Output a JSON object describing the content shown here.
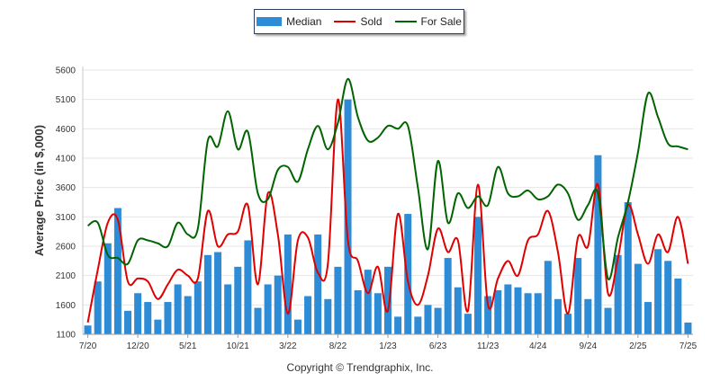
{
  "legend": {
    "median": "Median",
    "sold": "Sold",
    "for_sale": "For Sale"
  },
  "footer": "Copyright © Trendgraphix, Inc.",
  "colors": {
    "median": "#2e8bd6",
    "sold": "#e00000",
    "for_sale": "#006400",
    "grid": "#e6e6e6"
  },
  "chart_data": {
    "type": "bar",
    "title": "",
    "xlabel": "",
    "ylabel": "Average Price (in $,000)",
    "ylim": [
      1100,
      5600
    ],
    "yticks": [
      1100,
      1600,
      2100,
      2600,
      3100,
      3600,
      4100,
      4600,
      5100,
      5600
    ],
    "grid": true,
    "legend_position": "top-center",
    "x_tick_labels": [
      {
        "index": 0,
        "label": "7/20"
      },
      {
        "index": 5,
        "label": "12/20"
      },
      {
        "index": 10,
        "label": "5/21"
      },
      {
        "index": 15,
        "label": "10/21"
      },
      {
        "index": 20,
        "label": "3/22"
      },
      {
        "index": 25,
        "label": "8/22"
      },
      {
        "index": 30,
        "label": "1/23"
      },
      {
        "index": 35,
        "label": "6/23"
      },
      {
        "index": 40,
        "label": "11/23"
      },
      {
        "index": 45,
        "label": "4/24"
      },
      {
        "index": 50,
        "label": "9/24"
      },
      {
        "index": 55,
        "label": "2/25"
      },
      {
        "index": 60,
        "label": "7/25"
      }
    ],
    "categories": [
      "7/20",
      "8/20",
      "9/20",
      "10/20",
      "11/20",
      "12/20",
      "1/21",
      "2/21",
      "3/21",
      "4/21",
      "5/21",
      "6/21",
      "7/21",
      "8/21",
      "9/21",
      "10/21",
      "11/21",
      "12/21",
      "1/22",
      "2/22",
      "3/22",
      "4/22",
      "5/22",
      "6/22",
      "7/22",
      "8/22",
      "9/22",
      "10/22",
      "11/22",
      "12/22",
      "1/23",
      "2/23",
      "3/23",
      "4/23",
      "5/23",
      "6/23",
      "7/23",
      "8/23",
      "9/23",
      "10/23",
      "11/23",
      "12/23",
      "1/24",
      "2/24",
      "3/24",
      "4/24",
      "5/24",
      "6/24",
      "7/24",
      "8/24",
      "9/24",
      "10/24",
      "11/24",
      "12/24",
      "1/25",
      "2/25",
      "3/25",
      "4/25",
      "5/25",
      "6/25",
      "7/25"
    ],
    "series": [
      {
        "name": "Median",
        "kind": "bar",
        "values": [
          1250,
          2000,
          2650,
          3250,
          1500,
          1800,
          1650,
          1350,
          1650,
          1950,
          1750,
          2000,
          2450,
          2500,
          1950,
          2250,
          2700,
          1550,
          1950,
          2100,
          2800,
          1350,
          1750,
          2800,
          1700,
          2250,
          5100,
          1850,
          2200,
          1800,
          2250,
          1400,
          3150,
          1400,
          1600,
          1550,
          2400,
          1900,
          1450,
          3100,
          1750,
          1850,
          1950,
          1900,
          1800,
          1800,
          2350,
          1700,
          1450,
          2400,
          1700,
          4150,
          1550,
          2450,
          3350,
          2300,
          1650,
          2550,
          2350,
          2050,
          1300
        ]
      },
      {
        "name": "Sold",
        "kind": "line",
        "values": [
          1300,
          2200,
          3000,
          3050,
          2000,
          2050,
          2000,
          1700,
          1950,
          2200,
          2100,
          2050,
          3200,
          2600,
          2800,
          2850,
          3300,
          1950,
          3500,
          2800,
          1450,
          2700,
          2750,
          2150,
          2300,
          5100,
          2700,
          2350,
          1800,
          2250,
          1500,
          3150,
          2000,
          1600,
          2100,
          2900,
          2500,
          2700,
          1500,
          3650,
          1600,
          2050,
          2350,
          2100,
          2700,
          2800,
          3200,
          2500,
          1450,
          2750,
          2600,
          3650,
          1800,
          2400,
          3300,
          2800,
          2300,
          2800,
          2500,
          3100,
          2300
        ]
      },
      {
        "name": "For Sale",
        "kind": "line",
        "values": [
          2950,
          3000,
          2450,
          2400,
          2300,
          2700,
          2700,
          2650,
          2600,
          3000,
          2800,
          2900,
          4400,
          4300,
          4900,
          4250,
          4550,
          3500,
          3400,
          3900,
          3950,
          3700,
          4250,
          4650,
          4250,
          4700,
          5450,
          4800,
          4400,
          4450,
          4650,
          4600,
          4650,
          3600,
          2550,
          4050,
          3000,
          3500,
          3250,
          3450,
          3300,
          3950,
          3500,
          3450,
          3550,
          3400,
          3450,
          3650,
          3500,
          3050,
          3300,
          3500,
          2050,
          2750,
          3350,
          4200,
          5200,
          4800,
          4350,
          4300,
          4250
        ]
      }
    ]
  }
}
